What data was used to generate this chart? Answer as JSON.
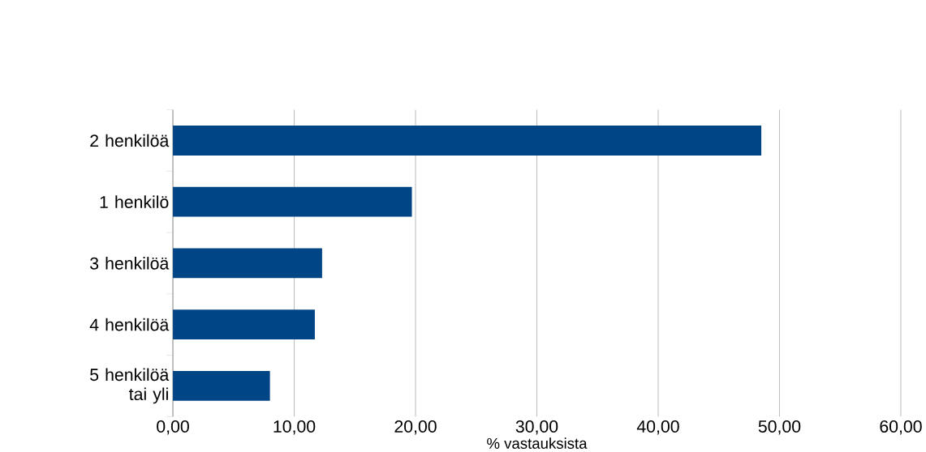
{
  "chart_data": {
    "type": "bar",
    "orientation": "horizontal",
    "xlabel": "% vastauksista",
    "categories": [
      "2 henkilöä",
      "1 henkilö",
      "3 henkilöä",
      "4 henkilöä",
      "5 henkilöä tai yli"
    ],
    "values": [
      48.5,
      19.7,
      12.3,
      11.7,
      8.0
    ],
    "color": "#004586",
    "xlim": [
      0,
      60
    ],
    "xticks": [
      {
        "value": 0,
        "label": "0,00"
      },
      {
        "value": 10,
        "label": "10,00"
      },
      {
        "value": 20,
        "label": "20,00"
      },
      {
        "value": 30,
        "label": "30,00"
      },
      {
        "value": 40,
        "label": "40,00"
      },
      {
        "value": 50,
        "label": "50,00"
      },
      {
        "value": 60,
        "label": "60,00"
      }
    ],
    "grid": "x"
  }
}
